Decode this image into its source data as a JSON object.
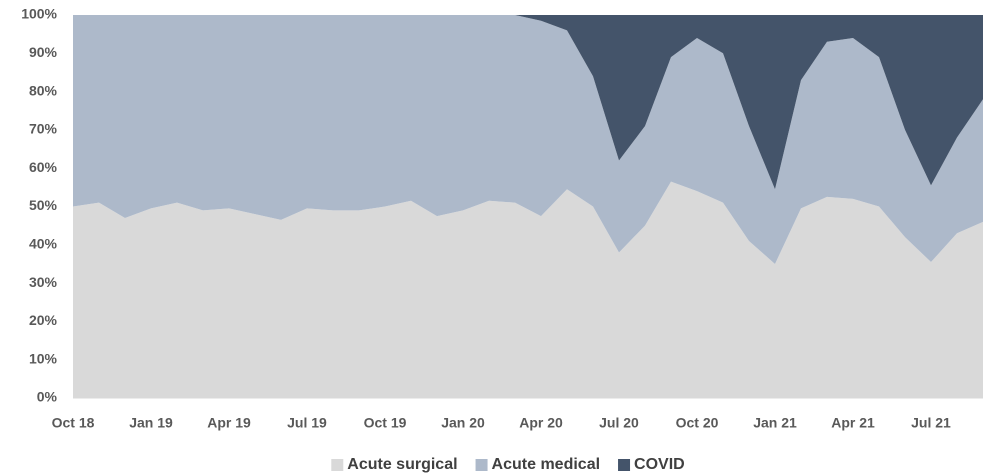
{
  "chart_data": {
    "type": "stacked_area",
    "categories": [
      "Oct 18",
      null,
      null,
      "Jan 19",
      null,
      null,
      "Apr 19",
      null,
      null,
      "Jul 19",
      null,
      null,
      "Oct 19",
      null,
      null,
      "Jan 20",
      null,
      null,
      "Apr 20",
      null,
      null,
      "Jul 20",
      null,
      null,
      "Oct 20",
      null,
      null,
      "Jan 21",
      null,
      null,
      "Apr 21",
      null,
      null,
      "Jul 21",
      null,
      null
    ],
    "series": [
      {
        "name": "Acute surgical",
        "color": "#d9d9d9",
        "values": [
          50,
          51,
          47,
          49.5,
          51,
          49,
          49.5,
          48,
          46.5,
          49.5,
          49,
          49,
          50,
          51.5,
          47.5,
          49,
          51.5,
          51,
          47.5,
          54.5,
          50,
          38,
          45,
          56.5,
          54,
          51,
          41,
          35,
          49.5,
          52.5,
          52,
          50,
          42,
          35.5,
          43,
          46
        ]
      },
      {
        "name": "Acute medical",
        "color": "#adb9ca",
        "values": [
          50,
          49,
          53,
          50.5,
          49,
          51,
          50.5,
          52,
          53.5,
          50.5,
          51,
          51,
          50,
          48.5,
          52.5,
          51,
          48.5,
          49,
          51,
          41.5,
          34,
          24,
          26,
          32.5,
          40,
          39,
          30,
          19.5,
          33.5,
          40.5,
          42,
          39,
          28,
          20,
          25,
          32
        ]
      },
      {
        "name": "COVID",
        "color": "#44546a",
        "values": [
          0,
          0,
          0,
          0,
          0,
          0,
          0,
          0,
          0,
          0,
          0,
          0,
          0,
          0,
          0,
          0,
          0,
          0,
          1.5,
          4,
          16,
          38,
          29,
          11,
          6,
          10,
          29,
          45.5,
          17,
          7,
          6,
          11,
          30,
          44.5,
          32,
          22
        ]
      }
    ],
    "ylim": [
      0,
      100
    ],
    "yticks": [
      {
        "value": 0,
        "label": "0%"
      },
      {
        "value": 10,
        "label": "10%"
      },
      {
        "value": 20,
        "label": "20%"
      },
      {
        "value": 30,
        "label": "30%"
      },
      {
        "value": 40,
        "label": "40%"
      },
      {
        "value": 50,
        "label": "50%"
      },
      {
        "value": 60,
        "label": "60%"
      },
      {
        "value": 70,
        "label": "70%"
      },
      {
        "value": 80,
        "label": "80%"
      },
      {
        "value": 90,
        "label": "90%"
      },
      {
        "value": 100,
        "label": "100%"
      }
    ],
    "legend": "bottom",
    "grid": false
  }
}
